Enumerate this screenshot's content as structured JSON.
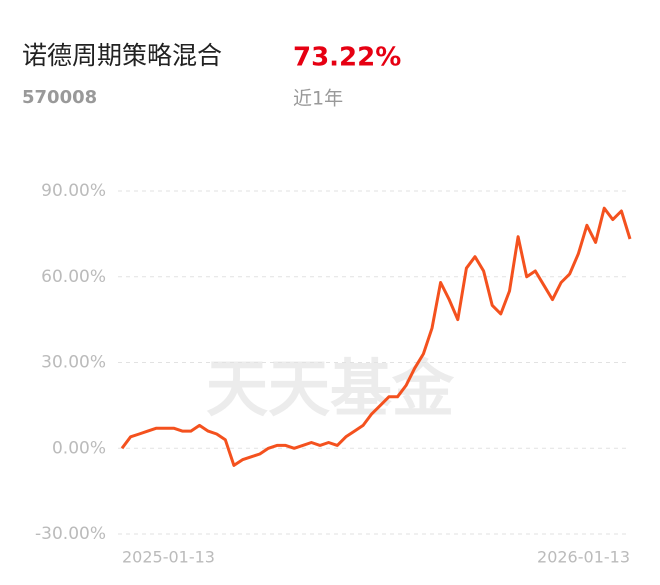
{
  "fund_name": "诺德周期策略混合",
  "return": "73.22%",
  "code": "570008",
  "period": "近1年",
  "watermark": "天天基金",
  "chart_data": {
    "type": "line",
    "categories": [
      "2025-01-13",
      null,
      null,
      null,
      null,
      null,
      null,
      null,
      null,
      null,
      null,
      null,
      null,
      null,
      null,
      null,
      null,
      null,
      null,
      null,
      null,
      null,
      null,
      null,
      null,
      null,
      null,
      null,
      null,
      null,
      null,
      null,
      null,
      null,
      null,
      null,
      null,
      null,
      null,
      null,
      null,
      null,
      null,
      null,
      null,
      null,
      null,
      null,
      null,
      null,
      null,
      null,
      null,
      null,
      null,
      null,
      null,
      null,
      null,
      "2026-01-13"
    ],
    "series": [
      {
        "color": "#f4511e",
        "values": [
          0,
          4,
          5,
          6,
          7,
          7,
          7,
          6,
          6,
          8,
          6,
          5,
          3,
          -6,
          -4,
          -3,
          -2,
          0,
          1,
          1,
          0,
          1,
          2,
          1,
          2,
          1,
          4,
          6,
          8,
          12,
          15,
          18,
          18,
          22,
          28,
          33,
          42,
          58,
          52,
          45,
          63,
          67,
          62,
          50,
          47,
          55,
          74,
          60,
          62,
          57,
          52,
          58,
          61,
          68,
          78,
          72,
          84,
          80,
          83,
          73.22
        ]
      }
    ],
    "ylim": [
      -30,
      90
    ],
    "yticks": [
      {
        "value": -30,
        "label": "-30.00%"
      },
      {
        "value": 0,
        "label": "0.00%"
      },
      {
        "value": 30,
        "label": "30.00%"
      },
      {
        "value": 60,
        "label": "60.00%"
      },
      {
        "value": 90,
        "label": "90.00%"
      }
    ],
    "grid": true
  }
}
